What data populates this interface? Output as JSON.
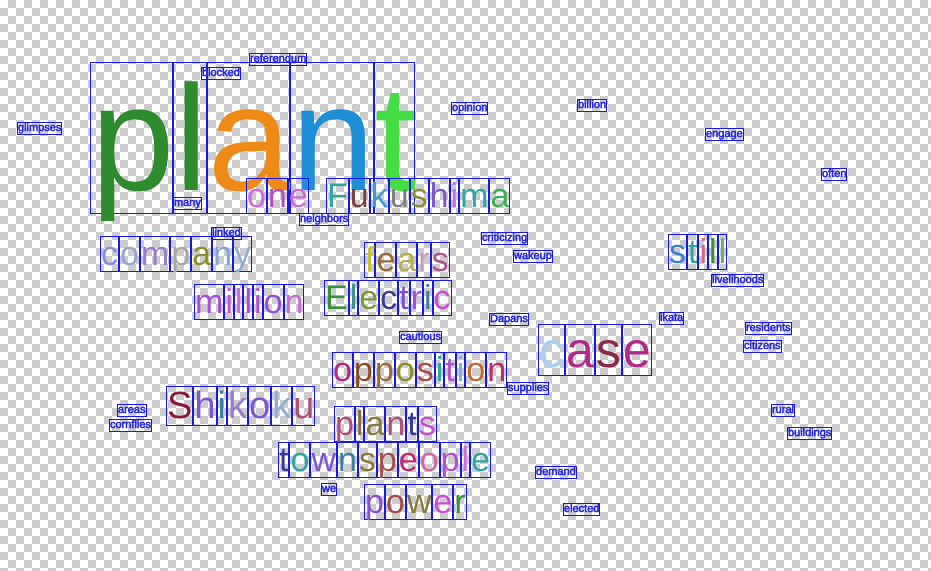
{
  "word_cloud": {
    "words": [
      {
        "text": "plant",
        "colors": [
          "#2e8b2e",
          "#2e8b2e",
          "#ef8a17",
          "#1e8fd6",
          "#44dd44"
        ]
      },
      {
        "text": "one",
        "colors": [
          "#d46adf",
          "#b74db9",
          "#cf6ad9"
        ]
      },
      {
        "text": "Fukushima",
        "colors": [
          "#2ea7a3",
          "#7a3f3f",
          "#3a9ed0",
          "#808080",
          "#8a8f3a",
          "#7b57d0",
          "#cf6ad9",
          "#2ea7a3",
          "#3ab25a"
        ]
      },
      {
        "text": "company",
        "colors": [
          "#8a8fe0",
          "#9aa7c9",
          "#9b7ecb",
          "#a8a8a8",
          "#8f8f2a",
          "#7fa7d6",
          "#8fb0d8"
        ]
      },
      {
        "text": "fears",
        "colors": [
          "#c8c23a",
          "#9a6b3a",
          "#b8b04a",
          "#c99abf",
          "#b05090"
        ]
      },
      {
        "text": "still",
        "colors": [
          "#3a7fd6",
          "#2ea7a3",
          "#d06a8a",
          "#3a8f3a",
          "#6ab06a"
        ]
      },
      {
        "text": "million",
        "colors": [
          "#a64dd9",
          "#c94fd0",
          "#d06ad0",
          "#a64dd9",
          "#b84dd0",
          "#8f4fd6",
          "#c96ad9"
        ]
      },
      {
        "text": "Electric",
        "colors": [
          "#3a8f3a",
          "#3a8f8f",
          "#7a9a3a",
          "#3a3a8f",
          "#7a4fd0",
          "#a64dd9",
          "#3a7fa0",
          "#c94fd0"
        ]
      },
      {
        "text": "case",
        "colors": [
          "#aad0f0",
          "#b02a8a",
          "#8a2a4a",
          "#b02a8a"
        ]
      },
      {
        "text": "opposition",
        "colors": [
          "#b02a8a",
          "#8a4a2a",
          "#9a6b3a",
          "#8f8f2a",
          "#a64d4d",
          "#2ea7a3",
          "#b84dd0",
          "#7fb0d8",
          "#c06a3a",
          "#c02a6a"
        ]
      },
      {
        "text": "Shikoku",
        "colors": [
          "#8a1a3a",
          "#7b57d0",
          "#3a7fa0",
          "#9b7ecb",
          "#7b57d0",
          "#8fb0d8",
          "#b04d7a"
        ]
      },
      {
        "text": "plants",
        "colors": [
          "#b04d7a",
          "#8a6a3a",
          "#8a7a3a",
          "#b04d7a",
          "#3a3a8f",
          "#c94fd0"
        ]
      },
      {
        "text": "townspeople",
        "colors": [
          "#3a3a8f",
          "#2ea7a3",
          "#7b57d0",
          "#3a7fa0",
          "#8a7a3a",
          "#a64d4d",
          "#c02a6a",
          "#d06aa0",
          "#b84dd0",
          "#d46adf",
          "#2ea7a3"
        ]
      },
      {
        "text": "power",
        "colors": [
          "#8a4fd6",
          "#a64d4d",
          "#8a7a3a",
          "#c94fd0",
          "#3a8f3a"
        ]
      },
      {
        "text": "referendum"
      },
      {
        "text": "blocked"
      },
      {
        "text": "opinion"
      },
      {
        "text": "billion"
      },
      {
        "text": "glimpses"
      },
      {
        "text": "engage"
      },
      {
        "text": "often"
      },
      {
        "text": "many"
      },
      {
        "text": "neighbors"
      },
      {
        "text": "linked"
      },
      {
        "text": "criticizing"
      },
      {
        "text": "wakeup"
      },
      {
        "text": "livelihoods"
      },
      {
        "text": "Dapans"
      },
      {
        "text": "ikata"
      },
      {
        "text": "residents"
      },
      {
        "text": "citizens"
      },
      {
        "text": "cautious"
      },
      {
        "text": "supplies"
      },
      {
        "text": "areas"
      },
      {
        "text": "cornflies"
      },
      {
        "text": "rural"
      },
      {
        "text": "buildings"
      },
      {
        "text": "demand"
      },
      {
        "text": "we"
      },
      {
        "text": "elected"
      }
    ]
  }
}
